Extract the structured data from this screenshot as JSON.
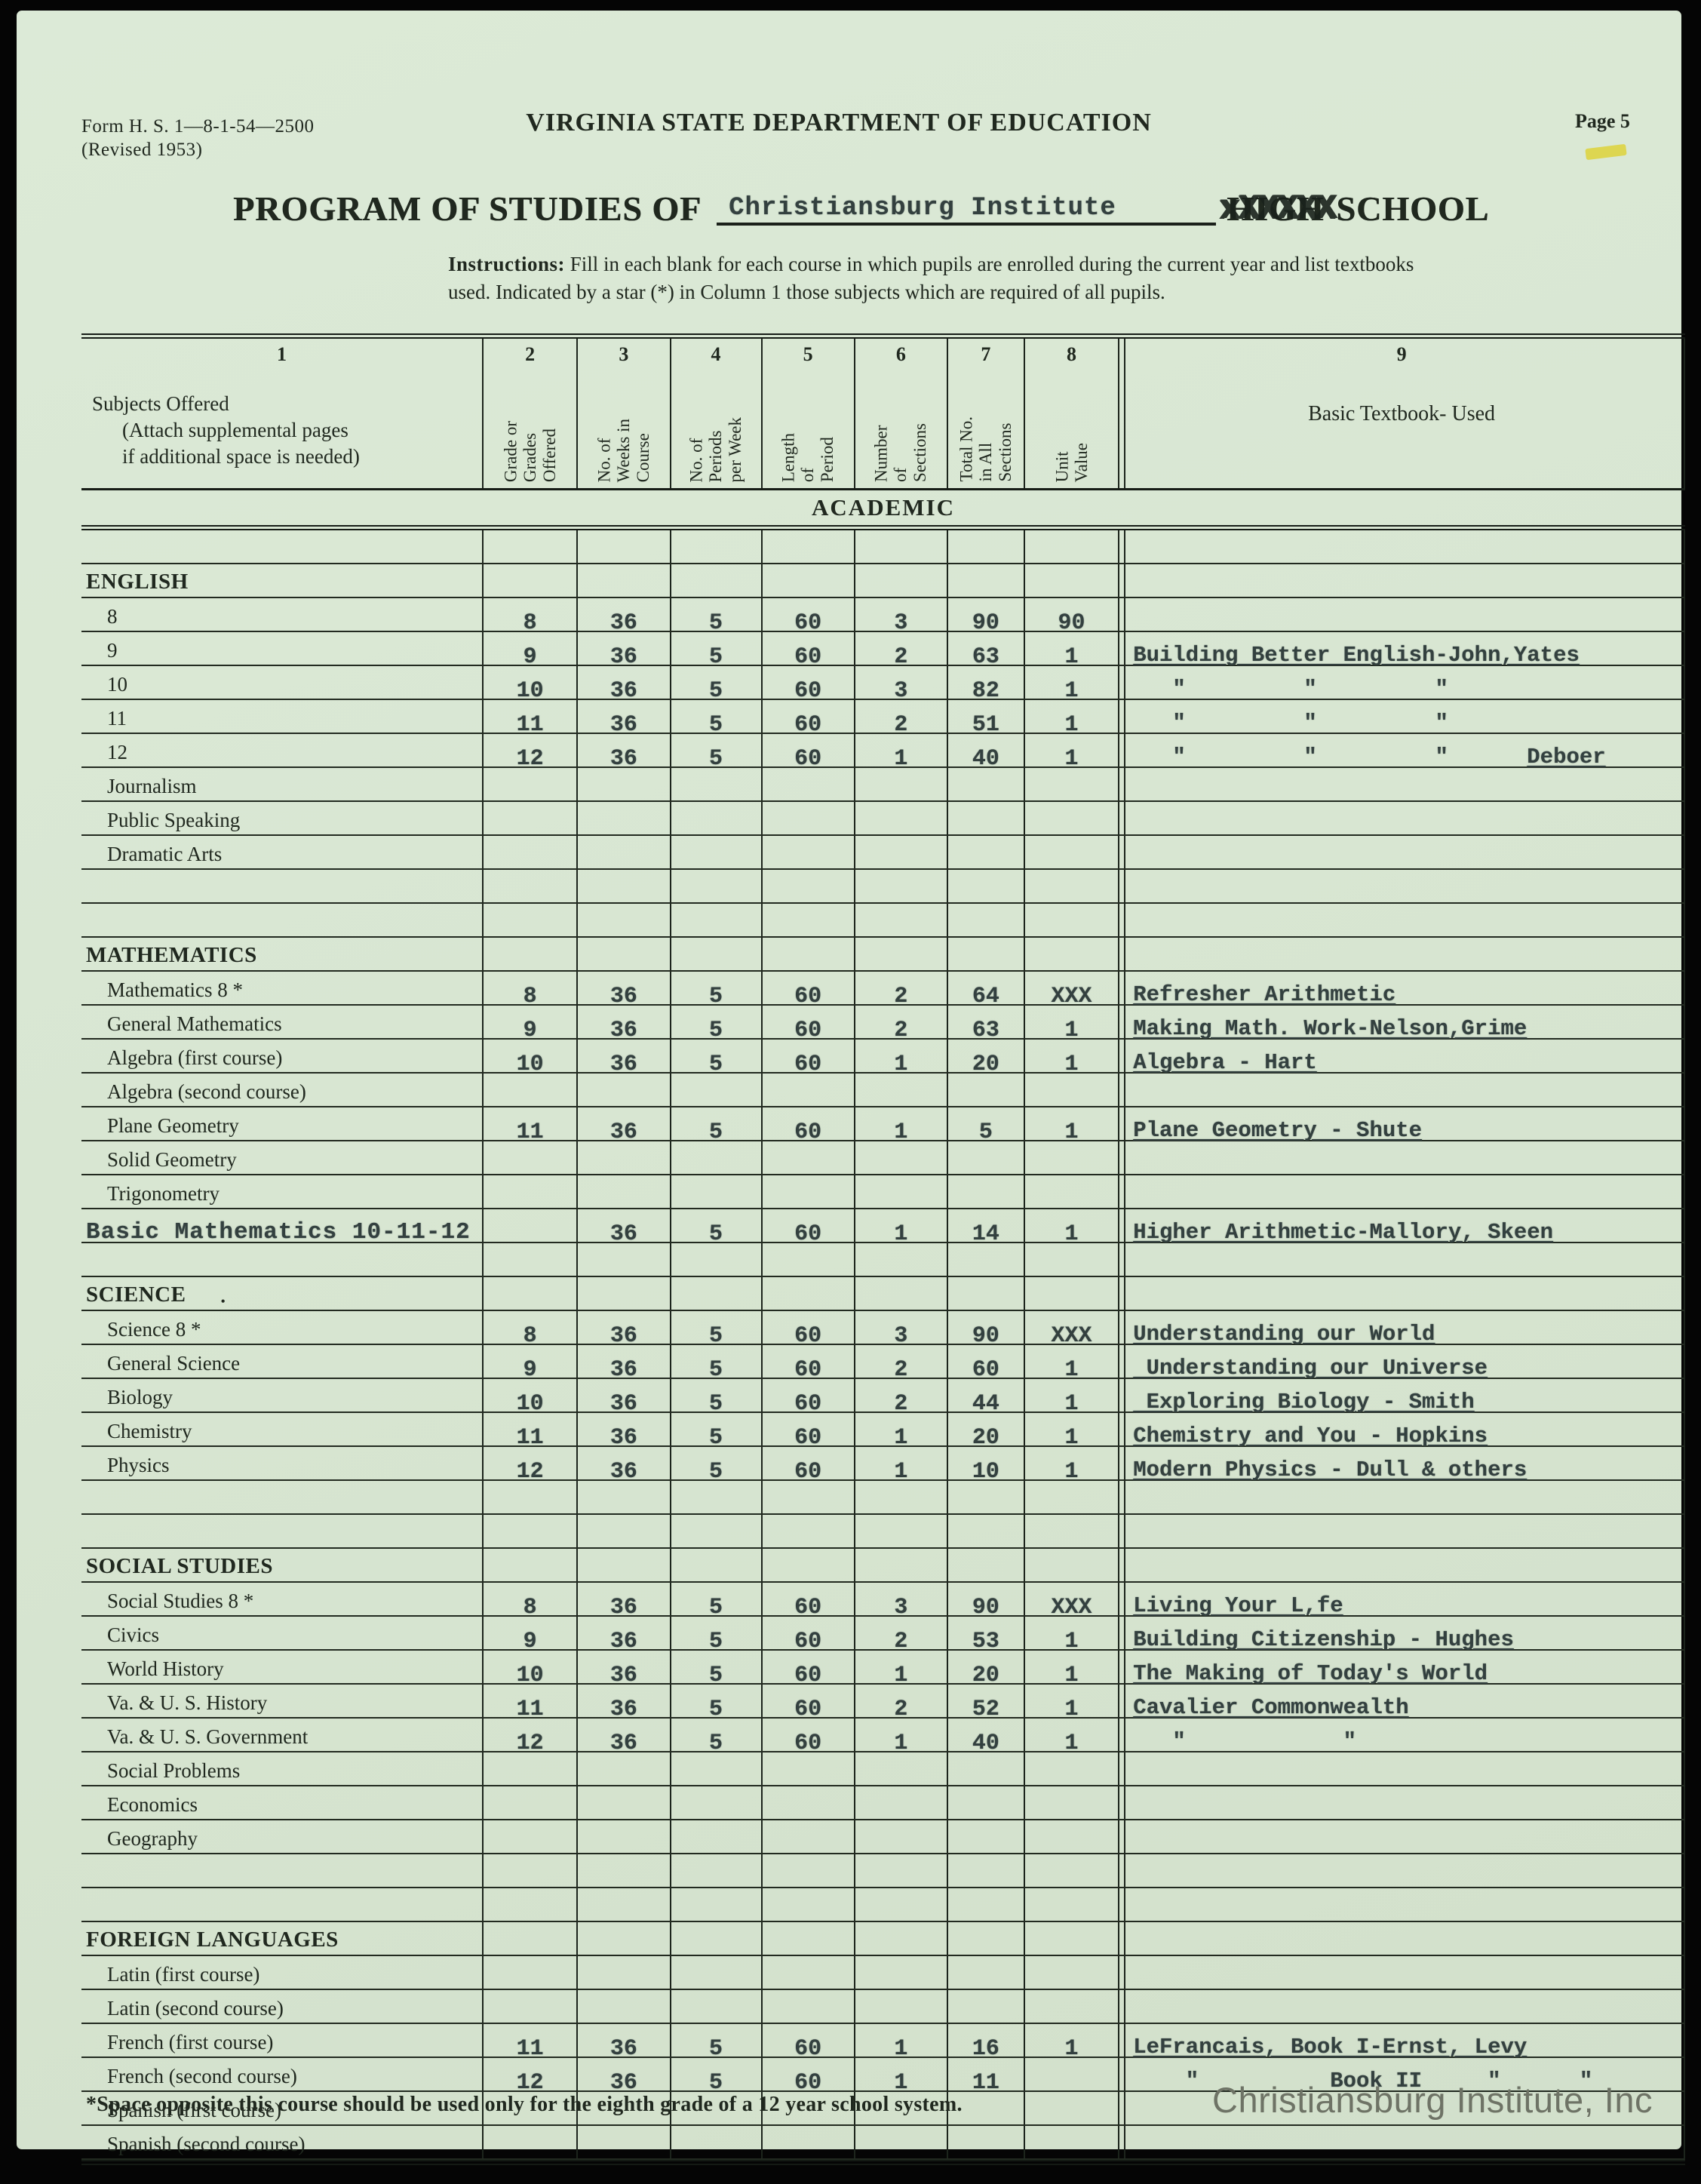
{
  "page": {
    "form_number": "Form H. S. 1—8-1-54—2500",
    "form_revision": "(Revised 1953)",
    "page_label": "Page 5",
    "department": "VIRGINIA STATE DEPARTMENT OF EDUCATION",
    "title_prefix": "PROGRAM OF STUDIES OF",
    "school_name": "Christiansburg Institute",
    "struck_word": "HIGH",
    "strike_overlay": "xXXXXX",
    "title_suffix": "SCHOOL",
    "instructions_label": "Instructions:",
    "instructions": "Fill in each blank for each course in which pupils are enrolled during the current year and list textbooks used.  Indicated by a star (*) in Column 1 those subjects which are required of all pupils.",
    "footnote": "*Space opposite this course should be used only for the eighth grade of a 12 year school system.",
    "watermark": "Christiansburg Institute, Inc"
  },
  "table": {
    "academic_banner": "ACADEMIC",
    "columns": [
      {
        "num": "1",
        "label_lines": [
          "Subjects Offered",
          "(Attach supplemental pages",
          "if additional space is needed)"
        ]
      },
      {
        "num": "2",
        "label": "Grade or\nGrades\nOffered"
      },
      {
        "num": "3",
        "label": "No. of\nWeeks in\nCourse"
      },
      {
        "num": "4",
        "label": "No. of\nPeriods\nper Week"
      },
      {
        "num": "5",
        "label": "Length\nof\nPeriod"
      },
      {
        "num": "6",
        "label": "Number\nof\nSections"
      },
      {
        "num": "7",
        "label": "Total No.\nin All\nSections"
      },
      {
        "num": "8",
        "label": "Unit\nValue"
      },
      {
        "num": "9",
        "label": "Basic Textbook- Used"
      }
    ],
    "sections": [
      {
        "title": "ENGLISH",
        "rows": [
          {
            "label": "8",
            "vals": [
              "8",
              "36",
              "5",
              "60",
              "3",
              "90",
              "90"
            ],
            "textbook": ""
          },
          {
            "label": "9",
            "vals": [
              "9",
              "36",
              "5",
              "60",
              "2",
              "63",
              "1"
            ],
            "textbook": "Building Better English-John,Yates",
            "u": true
          },
          {
            "label": "10",
            "vals": [
              "10",
              "36",
              "5",
              "60",
              "3",
              "82",
              "1"
            ],
            "textbook": "   \"         \"         \""
          },
          {
            "label": "11",
            "vals": [
              "11",
              "36",
              "5",
              "60",
              "2",
              "51",
              "1"
            ],
            "textbook": "   \"         \"         \""
          },
          {
            "label": "12",
            "vals": [
              "12",
              "36",
              "5",
              "60",
              "1",
              "40",
              "1"
            ],
            "textbook": "   \"         \"         \"      ",
            "tb2": "Deboer"
          },
          {
            "label": "Journalism",
            "vals": [
              "",
              "",
              "",
              "",
              "",
              "",
              ""
            ],
            "textbook": ""
          },
          {
            "label": "Public Speaking",
            "vals": [
              "",
              "",
              "",
              "",
              "",
              "",
              ""
            ],
            "textbook": ""
          },
          {
            "label": "Dramatic Arts",
            "vals": [
              "",
              "",
              "",
              "",
              "",
              "",
              ""
            ],
            "textbook": ""
          },
          {
            "label": "",
            "vals": [
              "",
              "",
              "",
              "",
              "",
              "",
              ""
            ],
            "textbook": ""
          },
          {
            "label": "",
            "vals": [
              "",
              "",
              "",
              "",
              "",
              "",
              ""
            ],
            "textbook": ""
          }
        ]
      },
      {
        "title": "MATHEMATICS",
        "rows": [
          {
            "label": "Mathematics 8 *",
            "vals": [
              "8",
              "36",
              "5",
              "60",
              "2",
              "64",
              "XXX"
            ],
            "textbook": "Refresher Arithmetic",
            "u": true
          },
          {
            "label": "General Mathematics",
            "vals": [
              "9",
              "36",
              "5",
              "60",
              "2",
              "63",
              "1"
            ],
            "textbook": "Making Math. Work-Nelson,Grime",
            "u": true
          },
          {
            "label": "Algebra (first course)",
            "vals": [
              "10",
              "36",
              "5",
              "60",
              "1",
              "20",
              "1"
            ],
            "textbook": "Algebra - Hart",
            "u": true
          },
          {
            "label": "Algebra (second course)",
            "vals": [
              "",
              "",
              "",
              "",
              "",
              "",
              ""
            ],
            "textbook": ""
          },
          {
            "label": "Plane Geometry",
            "vals": [
              "11",
              "36",
              "5",
              "60",
              "1",
              "5",
              "1"
            ],
            "textbook": "Plane Geometry - Shute",
            "u": true
          },
          {
            "label": "Solid Geometry",
            "vals": [
              "",
              "",
              "",
              "",
              "",
              "",
              ""
            ],
            "textbook": ""
          },
          {
            "label": "Trigonometry",
            "vals": [
              "",
              "",
              "",
              "",
              "",
              "",
              ""
            ],
            "textbook": ""
          },
          {
            "label": "Basic Mathematics 10-11-12",
            "typed": true,
            "vals": [
              "",
              "36",
              "5",
              "60",
              "1",
              "14",
              "1"
            ],
            "textbook": "Higher Arithmetic-Mallory, Skeen",
            "u": true
          },
          {
            "label": "",
            "vals": [
              "",
              "",
              "",
              "",
              "",
              "",
              ""
            ],
            "textbook": ""
          }
        ]
      },
      {
        "title": "SCIENCE",
        "mark": "•",
        "rows": [
          {
            "label": "Science 8 *",
            "vals": [
              "8",
              "36",
              "5",
              "60",
              "3",
              "90",
              "XXX"
            ],
            "textbook": "Understanding our World",
            "u": true
          },
          {
            "label": "General Science",
            "vals": [
              "9",
              "36",
              "5",
              "60",
              "2",
              "60",
              "1"
            ],
            "textbook": " Understanding our Universe",
            "u": true
          },
          {
            "label": "Biology",
            "vals": [
              "10",
              "36",
              "5",
              "60",
              "2",
              "44",
              "1"
            ],
            "textbook": " Exploring Biology - Smith",
            "u": true
          },
          {
            "label": "Chemistry",
            "vals": [
              "11",
              "36",
              "5",
              "60",
              "1",
              "20",
              "1"
            ],
            "textbook": "Chemistry and You - Hopkins",
            "u": true
          },
          {
            "label": "Physics",
            "vals": [
              "12",
              "36",
              "5",
              "60",
              "1",
              "10",
              "1"
            ],
            "textbook": "Modern Physics - Dull & others",
            "u": true
          },
          {
            "label": "",
            "vals": [
              "",
              "",
              "",
              "",
              "",
              "",
              ""
            ],
            "textbook": ""
          },
          {
            "label": "",
            "vals": [
              "",
              "",
              "",
              "",
              "",
              "",
              ""
            ],
            "textbook": ""
          }
        ]
      },
      {
        "title": "SOCIAL STUDIES",
        "rows": [
          {
            "label": "Social Studies 8 *",
            "vals": [
              "8",
              "36",
              "5",
              "60",
              "3",
              "90",
              "XXX"
            ],
            "textbook": "Living Your L,fe",
            "u": true
          },
          {
            "label": "Civics",
            "vals": [
              "9",
              "36",
              "5",
              "60",
              "2",
              "53",
              "1"
            ],
            "textbook": "Building Citizenship - Hughes",
            "u": true
          },
          {
            "label": "World History",
            "vals": [
              "10",
              "36",
              "5",
              "60",
              "1",
              "20",
              "1"
            ],
            "textbook": "The Making of Today's World",
            "u": true
          },
          {
            "label": "Va. & U. S. History",
            "vals": [
              "11",
              "36",
              "5",
              "60",
              "2",
              "52",
              "1"
            ],
            "textbook": "Cavalier Commonwealth",
            "u": true
          },
          {
            "label": "Va. & U. S. Government",
            "vals": [
              "12",
              "36",
              "5",
              "60",
              "1",
              "40",
              "1"
            ],
            "textbook": "   \"            \""
          },
          {
            "label": "Social Problems",
            "vals": [
              "",
              "",
              "",
              "",
              "",
              "",
              ""
            ],
            "textbook": ""
          },
          {
            "label": "Economics",
            "vals": [
              "",
              "",
              "",
              "",
              "",
              "",
              ""
            ],
            "textbook": ""
          },
          {
            "label": "Geography",
            "vals": [
              "",
              "",
              "",
              "",
              "",
              "",
              ""
            ],
            "textbook": ""
          },
          {
            "label": "",
            "vals": [
              "",
              "",
              "",
              "",
              "",
              "",
              ""
            ],
            "textbook": ""
          },
          {
            "label": "",
            "vals": [
              "",
              "",
              "",
              "",
              "",
              "",
              ""
            ],
            "textbook": ""
          }
        ]
      },
      {
        "title": "FOREIGN LANGUAGES",
        "rows": [
          {
            "label": "Latin (first course)",
            "vals": [
              "",
              "",
              "",
              "",
              "",
              "",
              ""
            ],
            "textbook": ""
          },
          {
            "label": "Latin (second course)",
            "vals": [
              "",
              "",
              "",
              "",
              "",
              "",
              ""
            ],
            "textbook": ""
          },
          {
            "label": "French (first course)",
            "vals": [
              "11",
              "36",
              "5",
              "60",
              "1",
              "16",
              "1"
            ],
            "textbook": "LeFrancais, Book I-Ernst, Levy",
            "u": true
          },
          {
            "label": "French (second course)",
            "vals": [
              "12",
              "36",
              "5",
              "60",
              "1",
              "11",
              ""
            ],
            "textbook": "    \"          Book II     \"      \""
          },
          {
            "label": "Spanish (first course)",
            "vals": [
              "",
              "",
              "",
              "",
              "",
              "",
              ""
            ],
            "textbook": ""
          },
          {
            "label": "Spanish (second course)",
            "vals": [
              "",
              "",
              "",
              "",
              "",
              "",
              ""
            ],
            "textbook": ""
          }
        ]
      }
    ]
  }
}
